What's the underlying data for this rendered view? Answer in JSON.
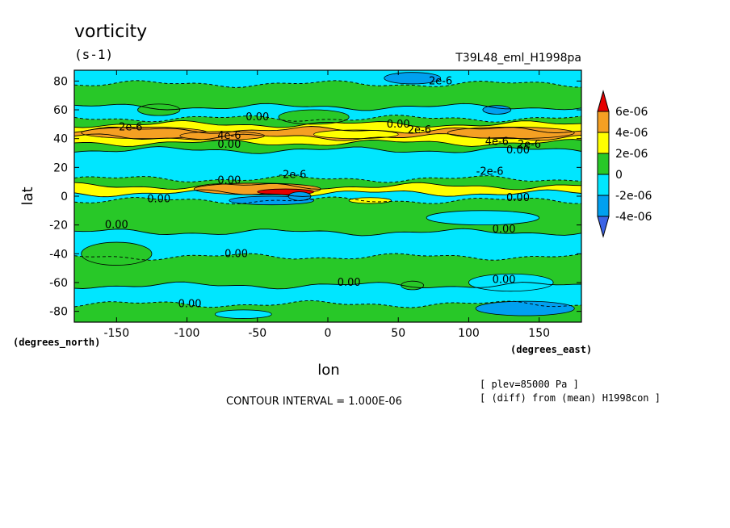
{
  "chart_data": {
    "type": "heatmap",
    "title": "vorticity",
    "units": "(s-1)",
    "run_label": "T39L48_eml_H1998pa",
    "xlabel": "lon",
    "ylabel": "lat",
    "x_unit_label": "(degrees_east)",
    "y_unit_label": "(degrees_north)",
    "xlim": [
      -180,
      180
    ],
    "ylim": [
      -87.5,
      87.5
    ],
    "x_ticks": [
      -150,
      -100,
      -50,
      0,
      50,
      100,
      150
    ],
    "x_tick_labels": [
      "-150",
      "-100",
      "-50",
      "0",
      "50",
      "100",
      "150"
    ],
    "y_ticks": [
      80,
      60,
      40,
      20,
      0,
      -20,
      -40,
      -60,
      -80
    ],
    "y_tick_labels": [
      "80",
      "60",
      "40",
      "20",
      "0",
      "-20",
      "-40",
      "-60",
      "-80"
    ],
    "contour_interval_text": "CONTOUR INTERVAL = 1.000E-06",
    "notes": [
      "[ plev=85000 Pa ]",
      "[ (diff) from (mean) H1998con ]"
    ],
    "colorbar": {
      "levels": [
        "6e-06",
        "4e-06",
        "2e-06",
        "0",
        "-2e-06",
        "-4e-06"
      ],
      "colors": {
        "above_6e-06": "#e60000",
        "4e-06_to_6e-06": "#f5a023",
        "2e-06_to_4e-06": "#ffff00",
        "0_to_2e-06": "#28c828",
        "-2e-06_to_0": "#00e6ff",
        "-4e-06_to_-2e-06": "#00a0f0",
        "below_-4e-06": "#3c64e6"
      }
    },
    "bands": [
      {
        "lat_min": 78,
        "lat_max": 87.5,
        "class": "cyan"
      },
      {
        "lat_min": 62,
        "lat_max": 78,
        "class": "green"
      },
      {
        "lat_min": 54,
        "lat_max": 62,
        "class": "cyan"
      },
      {
        "lat_min": 50,
        "lat_max": 54,
        "class": "green"
      },
      {
        "lat_min": 46,
        "lat_max": 50,
        "class": "yellow"
      },
      {
        "lat_min": 41,
        "lat_max": 46,
        "class": "orange"
      },
      {
        "lat_min": 37,
        "lat_max": 41,
        "class": "yellow"
      },
      {
        "lat_min": 32,
        "lat_max": 37,
        "class": "green"
      },
      {
        "lat_min": 12,
        "lat_max": 32,
        "class": "cyan"
      },
      {
        "lat_min": 7,
        "lat_max": 12,
        "class": "green"
      },
      {
        "lat_min": 2,
        "lat_max": 7,
        "class": "yellow"
      },
      {
        "lat_min": -3,
        "lat_max": 2,
        "class": "cyan"
      },
      {
        "lat_min": -25,
        "lat_max": -3,
        "class": "green"
      },
      {
        "lat_min": -42,
        "lat_max": -25,
        "class": "cyan"
      },
      {
        "lat_min": -62,
        "lat_max": -42,
        "class": "green"
      },
      {
        "lat_min": -75,
        "lat_max": -62,
        "class": "cyan"
      },
      {
        "lat_min": -87.5,
        "lat_max": -75,
        "class": "green"
      }
    ],
    "patches": [
      {
        "lon": -130,
        "lat": 44,
        "rlon": 45,
        "rlat": 4,
        "class": "orange"
      },
      {
        "lon": 130,
        "lat": 44,
        "rlon": 45,
        "rlat": 4,
        "class": "orange"
      },
      {
        "lon": -75,
        "lat": 42,
        "rlon": 30,
        "rlat": 3,
        "class": "orange"
      },
      {
        "lon": 20,
        "lat": 43,
        "rlon": 30,
        "rlat": 3,
        "class": "yellow"
      },
      {
        "lon": -10,
        "lat": 55,
        "rlon": 25,
        "rlat": 5,
        "class": "green"
      },
      {
        "lon": -120,
        "lat": 60,
        "rlon": 15,
        "rlat": 4,
        "class": "green"
      },
      {
        "lon": 60,
        "lat": 82,
        "rlon": 20,
        "rlat": 4,
        "class": "blue"
      },
      {
        "lon": 120,
        "lat": 60,
        "rlon": 10,
        "rlat": 3,
        "class": "blue"
      },
      {
        "lon": -50,
        "lat": 5,
        "rlon": 45,
        "rlat": 4,
        "class": "orange"
      },
      {
        "lon": -30,
        "lat": 3,
        "rlon": 20,
        "rlat": 2,
        "class": "red"
      },
      {
        "lon": -40,
        "lat": -3,
        "rlon": 30,
        "rlat": 3,
        "class": "blue"
      },
      {
        "lon": -20,
        "lat": 0,
        "rlon": 8,
        "rlat": 3,
        "class": "blue"
      },
      {
        "lon": 30,
        "lat": -3,
        "rlon": 15,
        "rlat": 2,
        "class": "yellow"
      },
      {
        "lon": 110,
        "lat": -15,
        "rlon": 40,
        "rlat": 5,
        "class": "cyan"
      },
      {
        "lon": -150,
        "lat": -40,
        "rlon": 25,
        "rlat": 8,
        "class": "green"
      },
      {
        "lon": 130,
        "lat": -60,
        "rlon": 30,
        "rlat": 6,
        "class": "cyan"
      },
      {
        "lon": 60,
        "lat": -62,
        "rlon": 8,
        "rlat": 3,
        "class": "green"
      },
      {
        "lon": 140,
        "lat": -78,
        "rlon": 35,
        "rlat": 5,
        "class": "blue"
      },
      {
        "lon": -60,
        "lat": -82,
        "rlon": 20,
        "rlat": 3,
        "class": "cyan"
      }
    ],
    "contour_labels": [
      {
        "text": "2e-6",
        "lon": 80,
        "lat": 80
      },
      {
        "text": "0.00",
        "lon": -50,
        "lat": 55
      },
      {
        "text": "2e-6",
        "lon": -140,
        "lat": 48
      },
      {
        "text": "0.00",
        "lon": 50,
        "lat": 50
      },
      {
        "text": "2e-6",
        "lon": 65,
        "lat": 46
      },
      {
        "text": "4e-6",
        "lon": -70,
        "lat": 42
      },
      {
        "text": "4e-6",
        "lon": 120,
        "lat": 38
      },
      {
        "text": "2e-6",
        "lon": 143,
        "lat": 36
      },
      {
        "text": "0.00",
        "lon": -70,
        "lat": 36
      },
      {
        "text": "0.00",
        "lon": 135,
        "lat": 32
      },
      {
        "text": "-2e-6",
        "lon": -25,
        "lat": 15
      },
      {
        "text": "-2e-6",
        "lon": 115,
        "lat": 17
      },
      {
        "text": "0.00",
        "lon": -70,
        "lat": 11
      },
      {
        "text": "0.00",
        "lon": -120,
        "lat": -2
      },
      {
        "text": "0.00",
        "lon": 135,
        "lat": -1
      },
      {
        "text": "0.00",
        "lon": -150,
        "lat": -20
      },
      {
        "text": "0.00",
        "lon": 125,
        "lat": -23
      },
      {
        "text": "0.00",
        "lon": -65,
        "lat": -40
      },
      {
        "text": "0.00",
        "lon": 15,
        "lat": -60
      },
      {
        "text": "0.00",
        "lon": 125,
        "lat": -58
      },
      {
        "text": "0.00",
        "lon": -98,
        "lat": -75
      }
    ]
  }
}
